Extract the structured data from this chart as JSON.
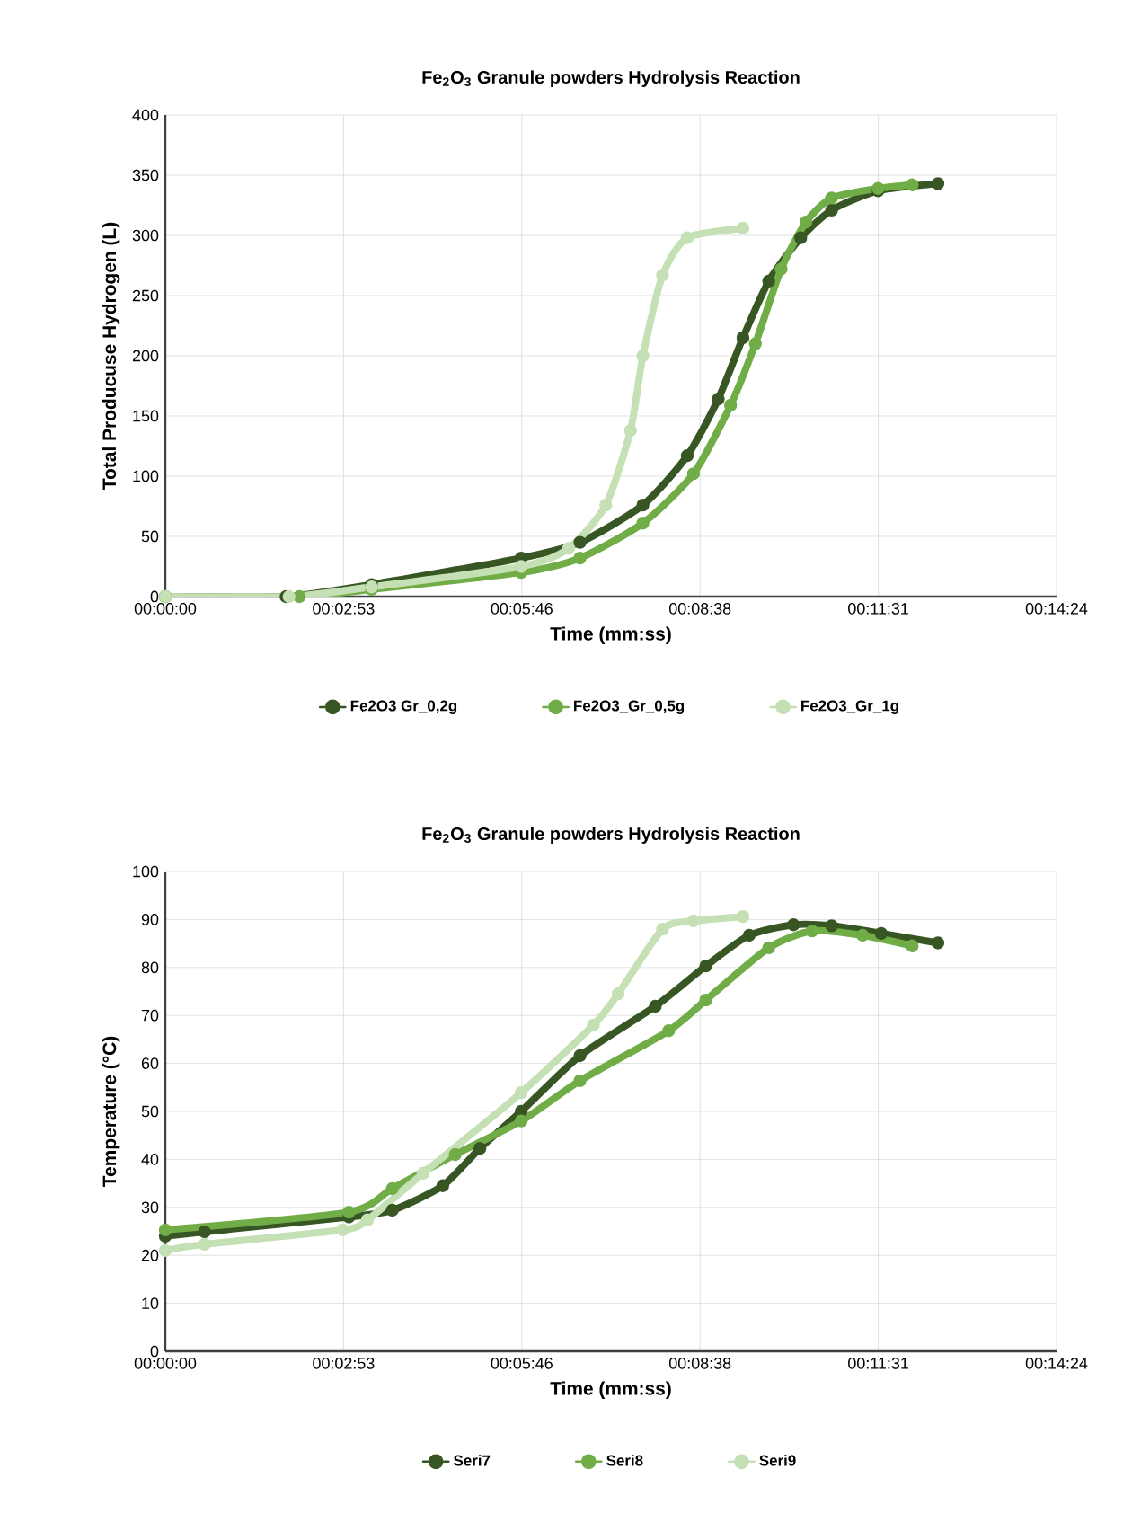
{
  "chart_data": [
    {
      "type": "line",
      "title": "Fe$_{2}$O$_{3}$  Granule powders Hydrolysis Reaction",
      "xlabel": "Time (mm:ss)",
      "ylabel": "Total Producuse Hydrogen (L)",
      "xlim": [
        0,
        864
      ],
      "ylim": [
        0,
        400
      ],
      "xticks": [
        {
          "value": 0,
          "label": "00:00:00"
        },
        {
          "value": 172.8,
          "label": "00:02:53"
        },
        {
          "value": 345.6,
          "label": "00:05:46"
        },
        {
          "value": 518.4,
          "label": "00:08:38"
        },
        {
          "value": 691.2,
          "label": "00:11:31"
        },
        {
          "value": 864,
          "label": "00:14:24"
        }
      ],
      "yticks": [
        0,
        50,
        100,
        150,
        200,
        250,
        300,
        350,
        400
      ],
      "grid": true,
      "legend": "bottom",
      "marker": "circle",
      "series": [
        {
          "name": "Fe2O3 Gr_0,2g",
          "color": "#375623",
          "x": [
            0,
            117,
            200,
            345,
            402,
            463,
            506,
            536,
            560,
            585,
            616,
            646,
            691,
            749
          ],
          "values": [
            0,
            0,
            10,
            32,
            45,
            76,
            117,
            164,
            215,
            262,
            298,
            321,
            337,
            343
          ]
        },
        {
          "name": "Fe2O3_Gr_0,5g",
          "color": "#70ad47",
          "x": [
            0,
            130,
            200,
            345,
            402,
            463,
            512,
            548,
            572,
            597,
            621,
            646,
            691,
            724
          ],
          "values": [
            0,
            0,
            6,
            20,
            32,
            61,
            102,
            159,
            210,
            272,
            311,
            331,
            339,
            342
          ]
        },
        {
          "name": "Fe2O3_Gr_1g",
          "color": "#c5e0b4",
          "x": [
            0,
            120,
            200,
            345,
            391,
            427,
            451,
            463,
            482,
            506,
            560
          ],
          "values": [
            0,
            0,
            8,
            25,
            40,
            76,
            138,
            200,
            267,
            298,
            306
          ]
        }
      ]
    },
    {
      "type": "line",
      "title": "Fe$_{2}$O$_{3}$  Granule powders Hydrolysis Reaction",
      "xlabel": "Time (mm:ss)",
      "ylabel": "Temperature (°C)",
      "xlim": [
        0,
        864
      ],
      "ylim": [
        0,
        100
      ],
      "xticks": [
        {
          "value": 0,
          "label": "00:00:00"
        },
        {
          "value": 172.8,
          "label": "00:02:53"
        },
        {
          "value": 345.6,
          "label": "00:05:46"
        },
        {
          "value": 518.4,
          "label": "00:08:38"
        },
        {
          "value": 691.2,
          "label": "00:11:31"
        },
        {
          "value": 864,
          "label": "00:14:24"
        }
      ],
      "yticks": [
        0,
        10,
        20,
        30,
        40,
        50,
        60,
        70,
        80,
        90,
        100
      ],
      "grid": true,
      "legend": "bottom",
      "marker": "circle",
      "series": [
        {
          "name": "Seri7",
          "color": "#375623",
          "x": [
            0,
            38,
            178,
            220,
            269,
            305,
            345,
            402,
            475,
            524,
            566,
            609,
            646,
            694,
            749
          ],
          "values": [
            24,
            24.9,
            28,
            29.4,
            34.5,
            42.3,
            50,
            61.6,
            71.9,
            80.3,
            86.7,
            88.9,
            88.7,
            87.1,
            85.1
          ]
        },
        {
          "name": "Seri8",
          "color": "#70ad47",
          "x": [
            0,
            178,
            220,
            281,
            345,
            402,
            488,
            524,
            585,
            627,
            676,
            724
          ],
          "values": [
            25.3,
            29,
            33.9,
            41,
            48,
            56.4,
            66.8,
            73.2,
            84.1,
            87.6,
            86.7,
            84.5
          ]
        },
        {
          "name": "Seri9",
          "color": "#c5e0b4",
          "x": [
            0,
            38,
            172,
            196,
            250,
            345,
            415,
            439,
            482,
            512,
            560
          ],
          "values": [
            21,
            22.3,
            25.3,
            27.4,
            37.1,
            53.9,
            68,
            74.5,
            88,
            89.7,
            90.6
          ]
        }
      ]
    }
  ]
}
